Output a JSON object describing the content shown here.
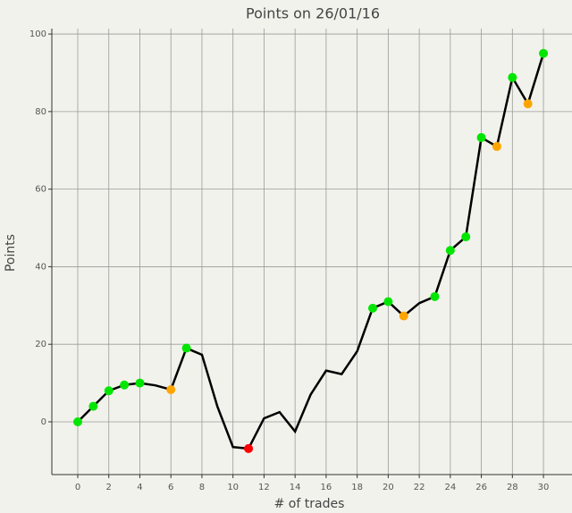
{
  "chart_data": {
    "type": "line",
    "title": "Points on 26/01/16",
    "x_label": "# of trades",
    "y_label": "Points",
    "x": [
      0,
      1,
      2,
      3,
      4,
      5,
      6,
      7,
      8,
      9,
      10,
      11,
      12,
      13,
      14,
      15,
      16,
      17,
      18,
      19,
      20,
      21,
      22,
      23,
      24,
      25,
      26,
      27,
      28,
      29,
      30
    ],
    "series": [
      {
        "color": "#000000",
        "values": [
          0,
          4,
          8,
          9.5,
          10,
          9.4,
          8.3,
          19,
          17.3,
          3.9,
          -6.5,
          -6.9,
          0.9,
          2.5,
          -2.5,
          7,
          13.2,
          12.3,
          18.2,
          29.3,
          31,
          27.3,
          30.6,
          32.3,
          44.2,
          47.7,
          73.3,
          71,
          88.8,
          82,
          95
        ],
        "marker_colors": [
          "#00e600",
          "#00e600",
          "#00e600",
          "#00e600",
          "#00e600",
          null,
          "#ffa500",
          "#00e600",
          null,
          null,
          null,
          "#ff0000",
          null,
          null,
          null,
          null,
          null,
          null,
          null,
          "#00e600",
          "#00e600",
          "#ffa500",
          null,
          "#00e600",
          "#00e600",
          "#00e600",
          "#00e600",
          "#ffa500",
          "#00e600",
          "#ffa500",
          "#00e600"
        ]
      }
    ],
    "xlim": [
      -1.67,
      31.84
    ],
    "ylim": [
      -13.6,
      101.4
    ],
    "xticks": [
      0,
      2,
      4,
      6,
      8,
      10,
      12,
      14,
      16,
      18,
      20,
      22,
      24,
      26,
      28,
      30
    ],
    "yticks": [
      0,
      20,
      40,
      60,
      80,
      100
    ],
    "grid": true
  }
}
